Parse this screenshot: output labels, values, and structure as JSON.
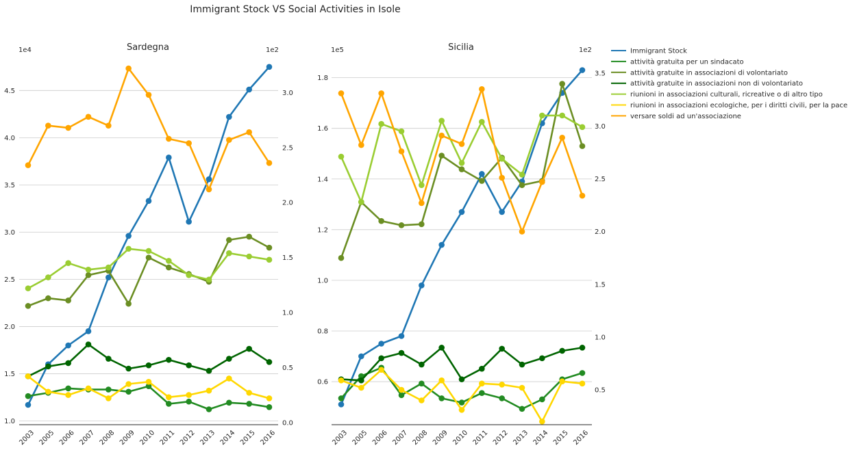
{
  "title": "Immigrant Stock VS Social Activities in Isole",
  "legend": {
    "placement": "right-outside",
    "entries": [
      {
        "label": "Immigrant Stock",
        "color": "#1f77b4"
      },
      {
        "label": "attività gratuita per un sindacato",
        "color": "#228b22"
      },
      {
        "label": "attività gratuite in associazioni di volontariato",
        "color": "#6b8e23"
      },
      {
        "label": "attività gratuite in associazioni non di volontariato",
        "color": "#006400"
      },
      {
        "label": "riunioni in associazioni culturali, ricreative o di altro tipo",
        "color": "#9acd32"
      },
      {
        "label": "riunioni in associazioni ecologiche, per i diritti civili, per la pace",
        "color": "#ffd700"
      },
      {
        "label": "versare soldi ad un'associazione",
        "color": "#ffa500"
      }
    ]
  },
  "chart_data": [
    {
      "type": "line",
      "title": "Sardegna",
      "x": [
        "2003",
        "2005",
        "2006",
        "2007",
        "2008",
        "2009",
        "2010",
        "2011",
        "2012",
        "2013",
        "2014",
        "2015",
        "2016"
      ],
      "grid": true,
      "left_axis": {
        "multiplier": "1e4",
        "ylim": [
          0.96,
          4.85
        ],
        "ticks": [
          1.0,
          1.5,
          2.0,
          2.5,
          3.0,
          3.5,
          4.0,
          4.5
        ],
        "tick_labels": [
          "1.0",
          "1.5",
          "2.0",
          "2.5",
          "3.0",
          "3.5",
          "4.0",
          "4.5"
        ]
      },
      "right_axis": {
        "multiplier": "1e2",
        "ylim": [
          -0.02,
          3.32
        ],
        "ticks": [
          0.0,
          0.5,
          1.0,
          1.5,
          2.0,
          2.5,
          3.0
        ],
        "tick_labels": [
          "0.0",
          "0.5",
          "1.0",
          "1.5",
          "2.0",
          "2.5",
          "3.0"
        ]
      },
      "series": [
        {
          "name": "Immigrant Stock",
          "axis": "left",
          "color": "#1f77b4",
          "values": [
            1.17,
            1.6,
            1.8,
            1.95,
            2.52,
            2.96,
            3.33,
            3.79,
            3.11,
            3.56,
            4.22,
            4.51,
            4.75
          ]
        },
        {
          "name": "attività gratuita per un sindacato",
          "axis": "right",
          "color": "#228b22",
          "values": [
            0.24,
            0.27,
            0.31,
            0.3,
            0.3,
            0.28,
            0.33,
            0.17,
            0.19,
            0.12,
            0.18,
            0.17,
            0.14
          ]
        },
        {
          "name": "attività gratuite in associazioni di volontariato",
          "axis": "right",
          "color": "#6b8e23",
          "values": [
            1.06,
            1.13,
            1.11,
            1.34,
            1.38,
            1.08,
            1.5,
            1.41,
            1.35,
            1.28,
            1.66,
            1.69,
            1.59
          ]
        },
        {
          "name": "attività gratuite in associazioni non di volontariato",
          "axis": "right",
          "color": "#006400",
          "values": [
            0.42,
            0.51,
            0.54,
            0.71,
            0.58,
            0.49,
            0.52,
            0.57,
            0.52,
            0.47,
            0.58,
            0.67,
            0.55
          ]
        },
        {
          "name": "riunioni in associazioni culturali, ricreative o di altro tipo",
          "axis": "right",
          "color": "#9acd32",
          "values": [
            1.22,
            1.32,
            1.45,
            1.39,
            1.41,
            1.58,
            1.56,
            1.47,
            1.34,
            1.3,
            1.54,
            1.51,
            1.48
          ]
        },
        {
          "name": "riunioni in associazioni ecologiche, per i diritti civili, per la pace",
          "axis": "right",
          "color": "#ffd700",
          "values": [
            0.42,
            0.28,
            0.25,
            0.31,
            0.22,
            0.35,
            0.37,
            0.23,
            0.25,
            0.29,
            0.4,
            0.27,
            0.22
          ]
        },
        {
          "name": "versare soldi ad un'associazione",
          "axis": "right",
          "color": "#ffa500",
          "values": [
            2.34,
            2.7,
            2.68,
            2.78,
            2.7,
            3.22,
            2.98,
            2.58,
            2.54,
            2.12,
            2.57,
            2.64,
            2.36
          ]
        }
      ]
    },
    {
      "type": "line",
      "title": "Sicilia",
      "x": [
        "2003",
        "2005",
        "2006",
        "2007",
        "2008",
        "2009",
        "2010",
        "2011",
        "2012",
        "2013",
        "2014",
        "2015",
        "2016"
      ],
      "grid": true,
      "left_axis": {
        "multiplier": "1e5",
        "ylim": [
          0.43,
          1.88
        ],
        "ticks": [
          0.6,
          0.8,
          1.0,
          1.2,
          1.4,
          1.6,
          1.8
        ],
        "tick_labels": [
          "0.6",
          "0.8",
          "1.0",
          "1.2",
          "1.4",
          "1.6",
          "1.8"
        ]
      },
      "right_axis": {
        "multiplier": "1e2",
        "ylim": [
          0.17,
          3.65
        ],
        "ticks": [
          0.5,
          1.0,
          1.5,
          2.0,
          2.5,
          3.0,
          3.5
        ],
        "tick_labels": [
          "0.5",
          "1.0",
          "1.5",
          "2.0",
          "2.5",
          "3.0",
          "3.5"
        ]
      },
      "series": [
        {
          "name": "Immigrant Stock",
          "axis": "left",
          "color": "#1f77b4",
          "values": [
            0.51,
            0.7,
            0.75,
            0.78,
            0.98,
            1.14,
            1.27,
            1.42,
            1.27,
            1.39,
            1.62,
            1.74,
            1.83
          ]
        },
        {
          "name": "attività gratuita per un sindacato",
          "axis": "right",
          "color": "#228b22",
          "values": [
            0.42,
            0.63,
            0.71,
            0.45,
            0.56,
            0.42,
            0.38,
            0.47,
            0.42,
            0.32,
            0.41,
            0.6,
            0.66
          ]
        },
        {
          "name": "attività gratuite in associazioni di volontariato",
          "axis": "right",
          "color": "#6b8e23",
          "values": [
            1.75,
            2.28,
            2.1,
            2.06,
            2.07,
            2.72,
            2.59,
            2.48,
            2.7,
            2.44,
            2.48,
            3.4,
            2.81
          ]
        },
        {
          "name": "attività gratuite in associazioni non di volontariato",
          "axis": "right",
          "color": "#006400",
          "values": [
            0.6,
            0.59,
            0.8,
            0.85,
            0.74,
            0.9,
            0.6,
            0.7,
            0.89,
            0.74,
            0.8,
            0.87,
            0.9
          ]
        },
        {
          "name": "riunioni in associazioni culturali, ricreative o di altro tipo",
          "axis": "right",
          "color": "#9acd32",
          "values": [
            2.71,
            2.28,
            3.02,
            2.95,
            2.44,
            3.05,
            2.65,
            3.04,
            2.69,
            2.54,
            3.1,
            3.1,
            2.99
          ]
        },
        {
          "name": "riunioni in associazioni ecologiche, per i diritti civili, per la pace",
          "axis": "right",
          "color": "#ffd700",
          "values": [
            0.59,
            0.52,
            0.69,
            0.5,
            0.4,
            0.59,
            0.31,
            0.56,
            0.55,
            0.52,
            0.2,
            0.58,
            0.56
          ]
        },
        {
          "name": "versare soldi ad un'associazione",
          "axis": "right",
          "color": "#ffa500",
          "values": [
            3.31,
            2.82,
            3.31,
            2.76,
            2.27,
            2.91,
            2.83,
            3.35,
            2.51,
            2.0,
            2.47,
            2.89,
            2.34
          ]
        }
      ]
    }
  ]
}
